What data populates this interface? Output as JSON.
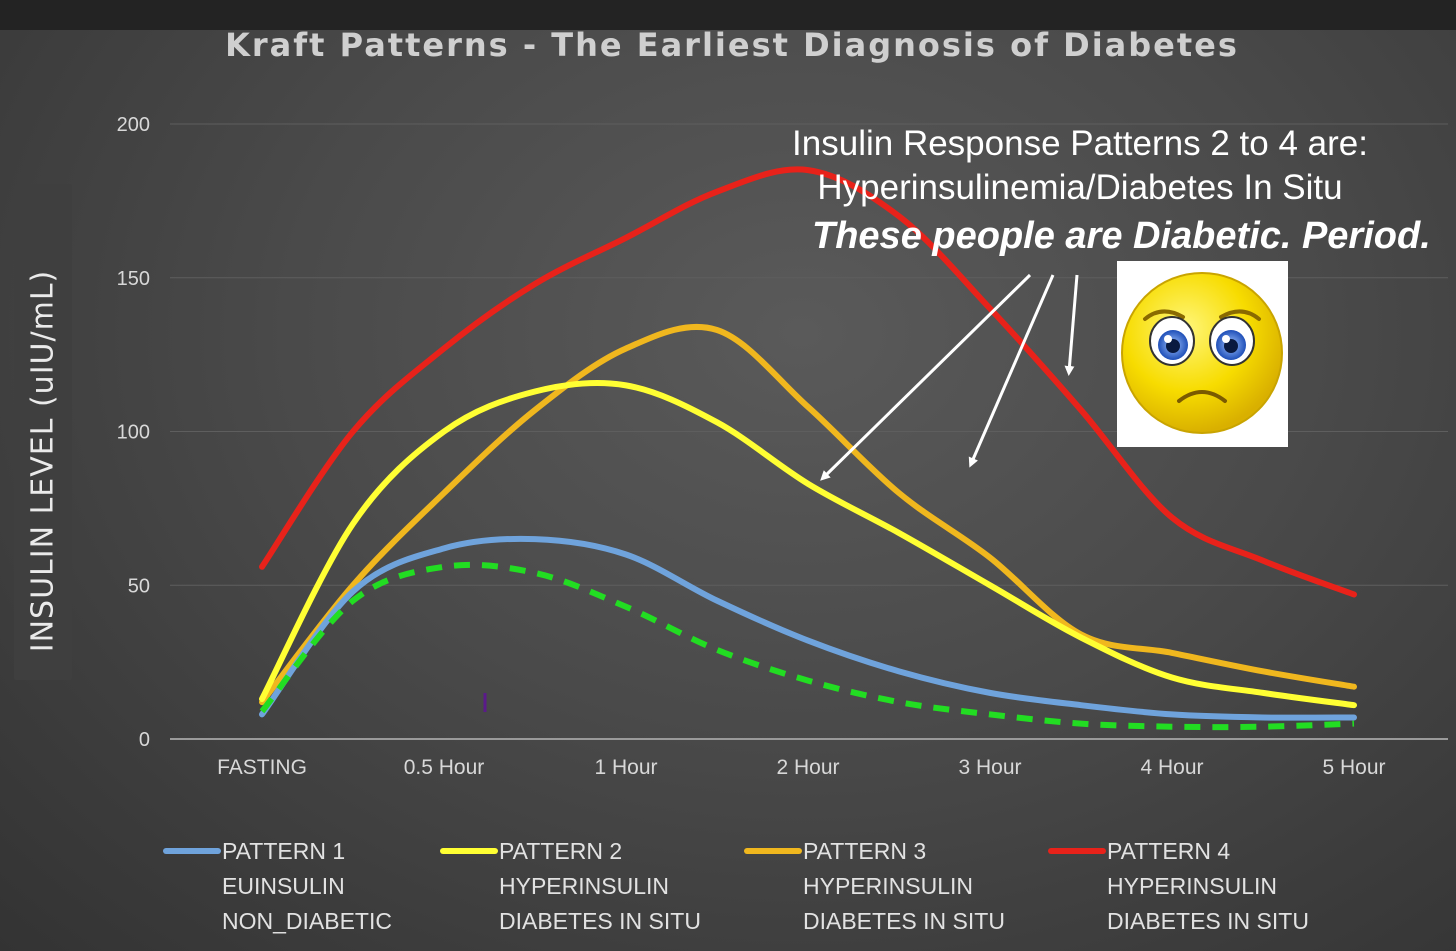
{
  "chart_data": {
    "type": "line",
    "title": "Kraft Patterns - The Earliest Diagnosis of Diabetes",
    "xlabel": "",
    "ylabel": "INSULIN LEVEL (uIU/mL)",
    "categories": [
      "FASTING",
      "0.5 Hour",
      "1 Hour",
      "2 Hour",
      "3 Hour",
      "4 Hour",
      "5 Hour"
    ],
    "ylim": [
      0,
      200
    ],
    "yticks": [
      0,
      50,
      100,
      150,
      200
    ],
    "grid": true,
    "series": [
      {
        "name": "PATTERN 1",
        "legend_lines": [
          "PATTERN 1",
          "EUINSULIN",
          "NON_DIABETIC"
        ],
        "color": "#6fa3dc",
        "style": "solid",
        "x": [
          0,
          0.5,
          1,
          1.5,
          2,
          2.5,
          3,
          3.5,
          4,
          4.5,
          5,
          5.5,
          6
        ],
        "values": [
          8,
          48,
          62,
          65,
          60,
          45,
          32,
          22,
          15,
          11,
          8,
          7,
          7
        ]
      },
      {
        "name": "PATTERN 2",
        "legend_lines": [
          "PATTERN 2",
          "HYPERINSULIN",
          "DIABETES IN SITU"
        ],
        "color": "#ffff33",
        "style": "solid",
        "x": [
          0,
          0.5,
          1,
          1.5,
          2,
          2.5,
          3,
          3.5,
          4,
          4.5,
          5,
          5.5,
          6
        ],
        "values": [
          13,
          70,
          100,
          113,
          115,
          103,
          83,
          67,
          50,
          33,
          20,
          15,
          11
        ]
      },
      {
        "name": "PATTERN 3",
        "legend_lines": [
          "PATTERN 3",
          "HYPERINSULIN",
          "DIABETES IN SITU"
        ],
        "color": "#f0b71e",
        "style": "solid",
        "x": [
          0,
          0.5,
          1,
          1.5,
          2,
          2.5,
          3,
          3.5,
          4,
          4.5,
          5,
          5.5,
          6
        ],
        "values": [
          12,
          50,
          80,
          107,
          127,
          133,
          108,
          80,
          59,
          34,
          28,
          22,
          17
        ]
      },
      {
        "name": "PATTERN 4",
        "legend_lines": [
          "PATTERN 4",
          "HYPERINSULIN",
          "DIABETES IN SITU"
        ],
        "color": "#e8221a",
        "style": "solid",
        "x": [
          0,
          0.5,
          1,
          1.5,
          2,
          2.5,
          3,
          3.5,
          4,
          4.5,
          5,
          5.5,
          6
        ],
        "values": [
          56,
          100,
          127,
          148,
          163,
          178,
          185,
          170,
          140,
          107,
          72,
          58,
          47
        ]
      },
      {
        "name": "Reference (dashed)",
        "color": "#22dd22",
        "style": "dashed",
        "in_legend": false,
        "x": [
          0,
          0.5,
          1,
          1.5,
          2,
          2.5,
          3,
          3.5,
          4,
          4.5,
          5,
          5.5,
          6
        ],
        "values": [
          9,
          45,
          56,
          54,
          43,
          29,
          19,
          12,
          8,
          5,
          4,
          4,
          5
        ]
      }
    ],
    "annotations": [
      "Insulin Response Patterns 2 to 4 are:",
      "Hyperinsulinemia/Diabetes In Situ",
      "These people are Diabetic. Period."
    ],
    "icons": [
      "sad-face-icon"
    ]
  }
}
